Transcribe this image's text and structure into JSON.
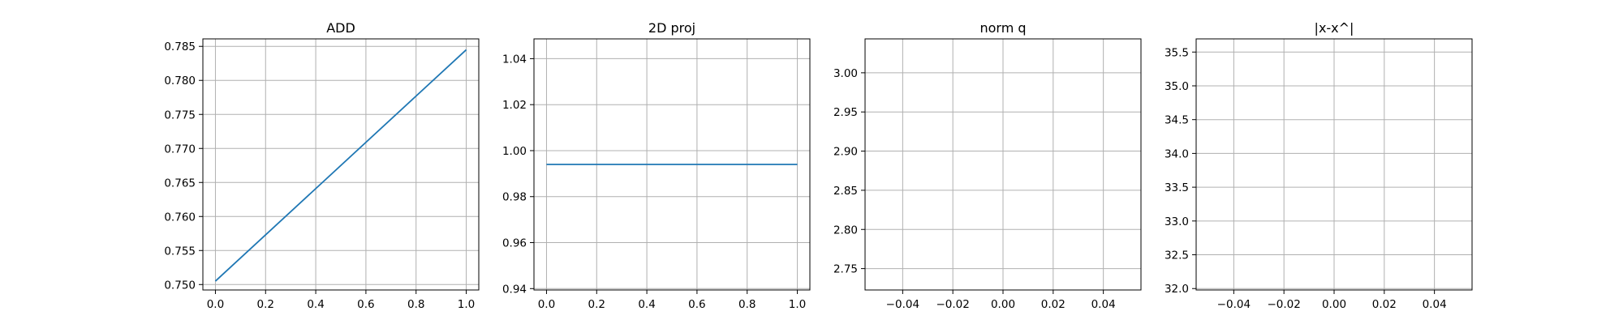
{
  "chart_data": [
    {
      "type": "line",
      "title": "ADD",
      "xlim": [
        -0.05,
        1.05
      ],
      "ylim": [
        0.7492,
        0.7861
      ],
      "xticks": [
        "0.0",
        "0.2",
        "0.4",
        "0.6",
        "0.8",
        "1.0"
      ],
      "yticks": [
        "0.750",
        "0.755",
        "0.760",
        "0.765",
        "0.770",
        "0.775",
        "0.780",
        "0.785"
      ],
      "grid": true,
      "series": [
        {
          "color": "#1f77b4",
          "x": [
            0,
            1
          ],
          "y": [
            0.7505,
            0.7845
          ]
        }
      ]
    },
    {
      "type": "line",
      "title": "2D proj",
      "xlim": [
        -0.05,
        1.05
      ],
      "ylim": [
        0.9394,
        1.0486
      ],
      "xticks": [
        "0.0",
        "0.2",
        "0.4",
        "0.6",
        "0.8",
        "1.0"
      ],
      "yticks": [
        "0.94",
        "0.96",
        "0.98",
        "1.00",
        "1.02",
        "1.04"
      ],
      "grid": true,
      "series": [
        {
          "color": "#1f77b4",
          "x": [
            0,
            1
          ],
          "y": [
            0.994,
            0.994
          ]
        }
      ]
    },
    {
      "type": "line",
      "title": "norm q",
      "xlim": [
        -0.055,
        0.055
      ],
      "ylim": [
        2.7227,
        3.0433
      ],
      "xticks": [
        "−0.04",
        "−0.02",
        "0.00",
        "0.02",
        "0.04"
      ],
      "yticks": [
        "2.75",
        "2.80",
        "2.85",
        "2.90",
        "2.95",
        "3.00"
      ],
      "grid": true,
      "series": []
    },
    {
      "type": "line",
      "title": "|x-x^|",
      "xlim": [
        -0.055,
        0.055
      ],
      "ylim": [
        31.979,
        35.695
      ],
      "xticks": [
        "−0.04",
        "−0.02",
        "0.00",
        "0.02",
        "0.04"
      ],
      "yticks": [
        "32.0",
        "32.5",
        "33.0",
        "33.5",
        "34.0",
        "34.5",
        "35.0",
        "35.5"
      ],
      "grid": true,
      "series": []
    }
  ]
}
